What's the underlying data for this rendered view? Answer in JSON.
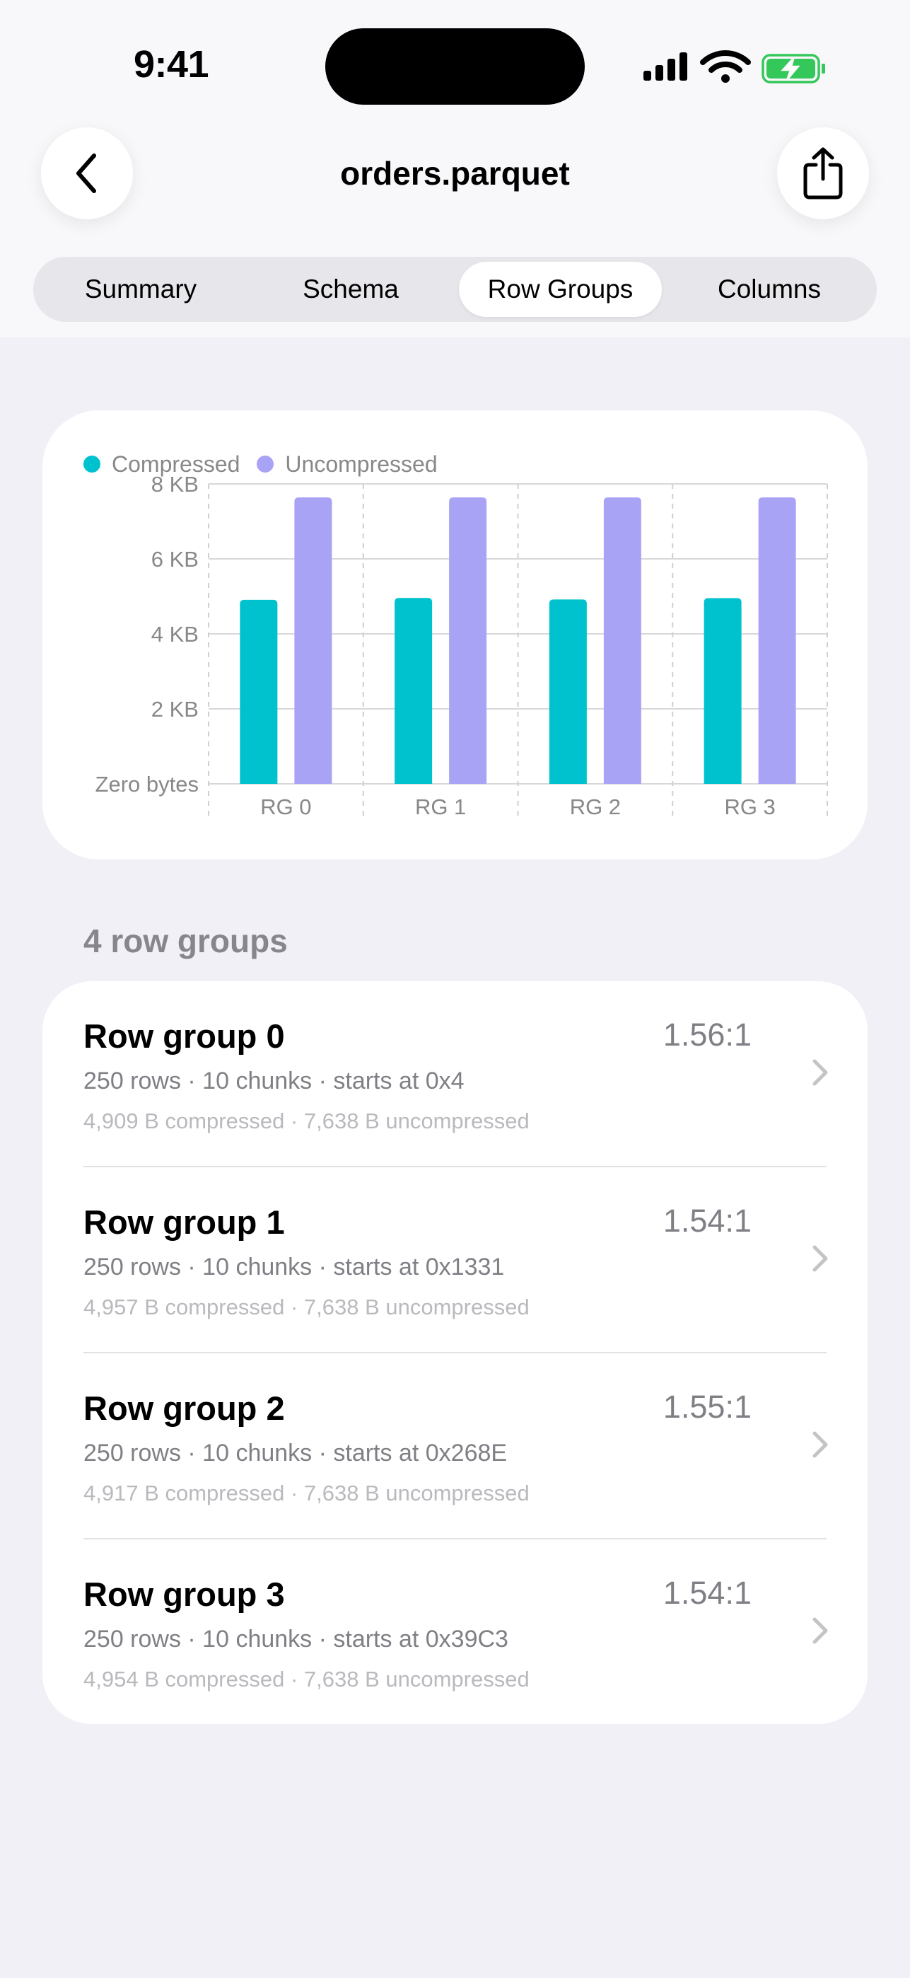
{
  "status_bar": {
    "time": "9:41",
    "battery_color": "#34C759"
  },
  "nav": {
    "title": "orders.parquet",
    "back_icon": "chevron-left-icon",
    "share_icon": "share-icon"
  },
  "tabs": [
    {
      "label": "Summary",
      "active": false
    },
    {
      "label": "Schema",
      "active": false
    },
    {
      "label": "Row Groups",
      "active": true
    },
    {
      "label": "Columns",
      "active": false
    }
  ],
  "colors": {
    "compressed": "#00C2CF",
    "uncompressed": "#A9A3F5"
  },
  "chart_data": {
    "type": "bar",
    "categories": [
      "RG 0",
      "RG 1",
      "RG 2",
      "RG 3"
    ],
    "series": [
      {
        "name": "Compressed",
        "values": [
          4909,
          4957,
          4917,
          4954
        ]
      },
      {
        "name": "Uncompressed",
        "values": [
          7638,
          7638,
          7638,
          7638
        ]
      }
    ],
    "ylim": [
      0,
      8000
    ],
    "y_ticks": [
      {
        "value": 8000,
        "label": "8 KB"
      },
      {
        "value": 6000,
        "label": "6 KB"
      },
      {
        "value": 4000,
        "label": "4 KB"
      },
      {
        "value": 2000,
        "label": "2 KB"
      },
      {
        "value": 0,
        "label": "Zero bytes"
      }
    ],
    "legend_position": "top-left",
    "grid": true
  },
  "section_header": "4 row groups",
  "row_groups": [
    {
      "title": "Row group 0",
      "ratio": "1.56:1",
      "subtitle": "250 rows · 10 chunks · starts at 0x4",
      "bytes": "4,909 B compressed · 7,638 B uncompressed"
    },
    {
      "title": "Row group 1",
      "ratio": "1.54:1",
      "subtitle": "250 rows · 10 chunks · starts at 0x1331",
      "bytes": "4,957 B compressed · 7,638 B uncompressed"
    },
    {
      "title": "Row group 2",
      "ratio": "1.55:1",
      "subtitle": "250 rows · 10 chunks · starts at 0x268E",
      "bytes": "4,917 B compressed · 7,638 B uncompressed"
    },
    {
      "title": "Row group 3",
      "ratio": "1.54:1",
      "subtitle": "250 rows · 10 chunks · starts at 0x39C3",
      "bytes": "4,954 B compressed · 7,638 B uncompressed"
    }
  ]
}
